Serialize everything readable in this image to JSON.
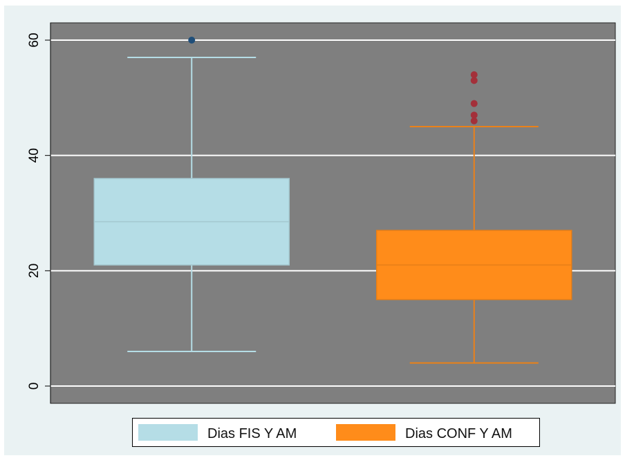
{
  "chart_data": {
    "type": "box",
    "title": "",
    "xlabel": "",
    "ylabel": "",
    "ylim": [
      -3,
      63
    ],
    "yticks": [
      0,
      20,
      40,
      60
    ],
    "grid": true,
    "legend_position": "bottom",
    "background_color": "#7f7f7f",
    "series": [
      {
        "name": "Dias FIS Y AM",
        "color": "#b5dde6",
        "whisker_low": 6,
        "q1": 21,
        "median": 28.5,
        "q3": 36,
        "whisker_high": 57,
        "outliers": [
          60
        ]
      },
      {
        "name": "Dias CONF Y AM",
        "color": "#ff8c1a",
        "whisker_low": 4,
        "q1": 15,
        "median": 21,
        "q3": 27,
        "whisker_high": 45,
        "outliers": [
          46,
          47,
          49,
          53,
          54
        ]
      }
    ]
  }
}
